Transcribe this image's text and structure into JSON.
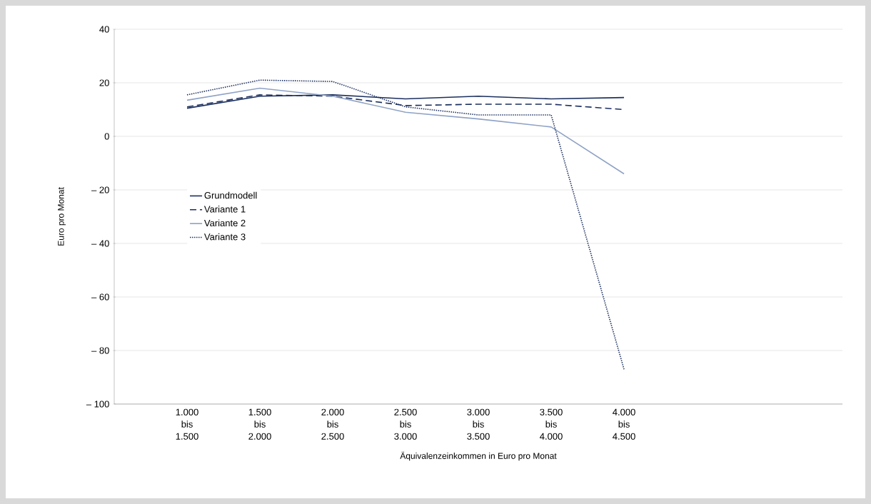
{
  "chart_data": {
    "type": "line",
    "xlabel": "Äquivalenzeinkommen in Euro pro Monat",
    "ylabel": "Euro pro Monat",
    "categories": [
      "1.000 bis 1.500",
      "1.500 bis 2.000",
      "2.000 bis 2.500",
      "2.500 bis 3.000",
      "3.000 bis 3.500",
      "3.500 bis 4.000",
      "4.000 bis 4.500"
    ],
    "series": [
      {
        "name": "Grundmodell",
        "color": "#1b2f5e",
        "line_style": "solid",
        "values": [
          10.5,
          15,
          15.5,
          14,
          15,
          14,
          14.5
        ]
      },
      {
        "name": "Variante 1",
        "color": "#1b2f5e",
        "line_style": "dashed",
        "values": [
          11,
          15.5,
          15,
          11.5,
          12,
          12,
          10
        ]
      },
      {
        "name": "Variante 2",
        "color": "#8fa3c6",
        "line_style": "solid",
        "values": [
          13.5,
          18,
          15,
          9,
          6.5,
          3.5,
          -14
        ]
      },
      {
        "name": "Variante 3",
        "color": "#1b2f5e",
        "line_style": "dotted",
        "values": [
          15.5,
          21,
          20.5,
          11,
          8,
          8,
          -87
        ]
      }
    ],
    "ylim": [
      -100,
      40
    ],
    "yticks": [
      {
        "value": -100,
        "label": "– 100"
      },
      {
        "value": -80,
        "label": "– 80"
      },
      {
        "value": -60,
        "label": "– 60"
      },
      {
        "value": -40,
        "label": "– 40"
      },
      {
        "value": -20,
        "label": "– 20"
      },
      0,
      20,
      40
    ],
    "grid": "y",
    "legend": "left",
    "marker": "none"
  }
}
